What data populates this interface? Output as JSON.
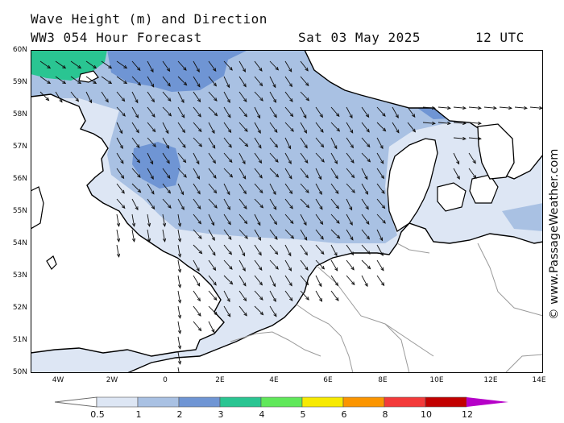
{
  "title": {
    "line1": "Wave Height (m) and Direction",
    "line2": "WW3 054 Hour Forecast",
    "date": "Sat 03 May 2025",
    "time": "12 UTC"
  },
  "credit": "© www.PassageWeather.com",
  "lat_labels": [
    "60N",
    "59N",
    "58N",
    "57N",
    "56N",
    "55N",
    "54N",
    "53N",
    "52N",
    "51N",
    "50N"
  ],
  "lon_labels": [
    "4W",
    "2W",
    "0",
    "2E",
    "4E",
    "6E",
    "8E",
    "10E",
    "12E",
    "14E"
  ],
  "legend": {
    "labels": [
      "0.5",
      "1",
      "2",
      "3",
      "4",
      "5",
      "6",
      "8",
      "10",
      "12"
    ],
    "colors": [
      "#ffffff",
      "#dde6f4",
      "#a9c1e3",
      "#6f95d4",
      "#2ac592",
      "#60e85a",
      "#f7ea02",
      "#fb9500",
      "#f33a3a",
      "#c20000",
      "#b600c8"
    ]
  },
  "map_colors": {
    "sea_light": "#dde6f4",
    "sea_mid": "#a9c1e3",
    "sea_dark": "#6f95d4",
    "sea_green": "#2ac592",
    "coast": "#000000",
    "border": "#9a9a9a",
    "arrow": "#111111"
  }
}
